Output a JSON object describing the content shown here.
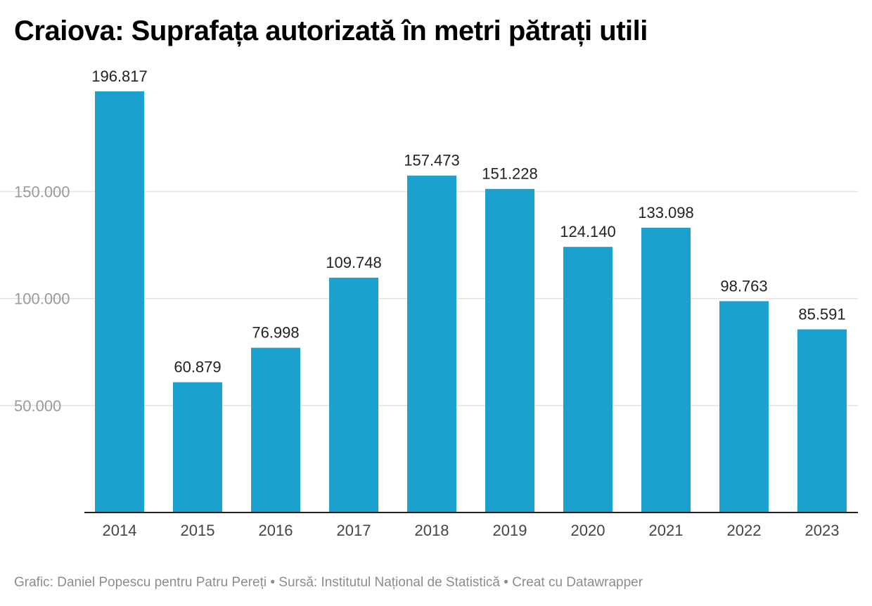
{
  "title": "Craiova: Suprafața autorizată în metri pătrați utili",
  "footer": "Grafic: Daniel Popescu pentru Patru Pereți • Sursă: Institutul Național de Statistică • Creat cu Datawrapper",
  "colors": {
    "bar": "#1aa1cd",
    "grid": "#e2e2e2",
    "axis_text": "#9a9a9a",
    "label_text": "#222222",
    "baseline": "#222222"
  },
  "chart_data": {
    "type": "bar",
    "categories": [
      "2014",
      "2015",
      "2016",
      "2017",
      "2018",
      "2019",
      "2020",
      "2021",
      "2022",
      "2023"
    ],
    "values": [
      196817,
      60879,
      76998,
      109748,
      157473,
      151228,
      124140,
      133098,
      98763,
      85591
    ],
    "value_labels": [
      "196.817",
      "60.879",
      "76.998",
      "109.748",
      "157.473",
      "151.228",
      "124.140",
      "133.098",
      "98.763",
      "85.591"
    ],
    "yticks": [
      50000,
      100000,
      150000
    ],
    "ytick_labels": [
      "50.000",
      "100.000",
      "150.000"
    ],
    "ylim": [
      0,
      196817
    ],
    "grid": true,
    "title": "Craiova: Suprafața autorizată în metri pătrați utili",
    "xlabel": "",
    "ylabel": ""
  }
}
